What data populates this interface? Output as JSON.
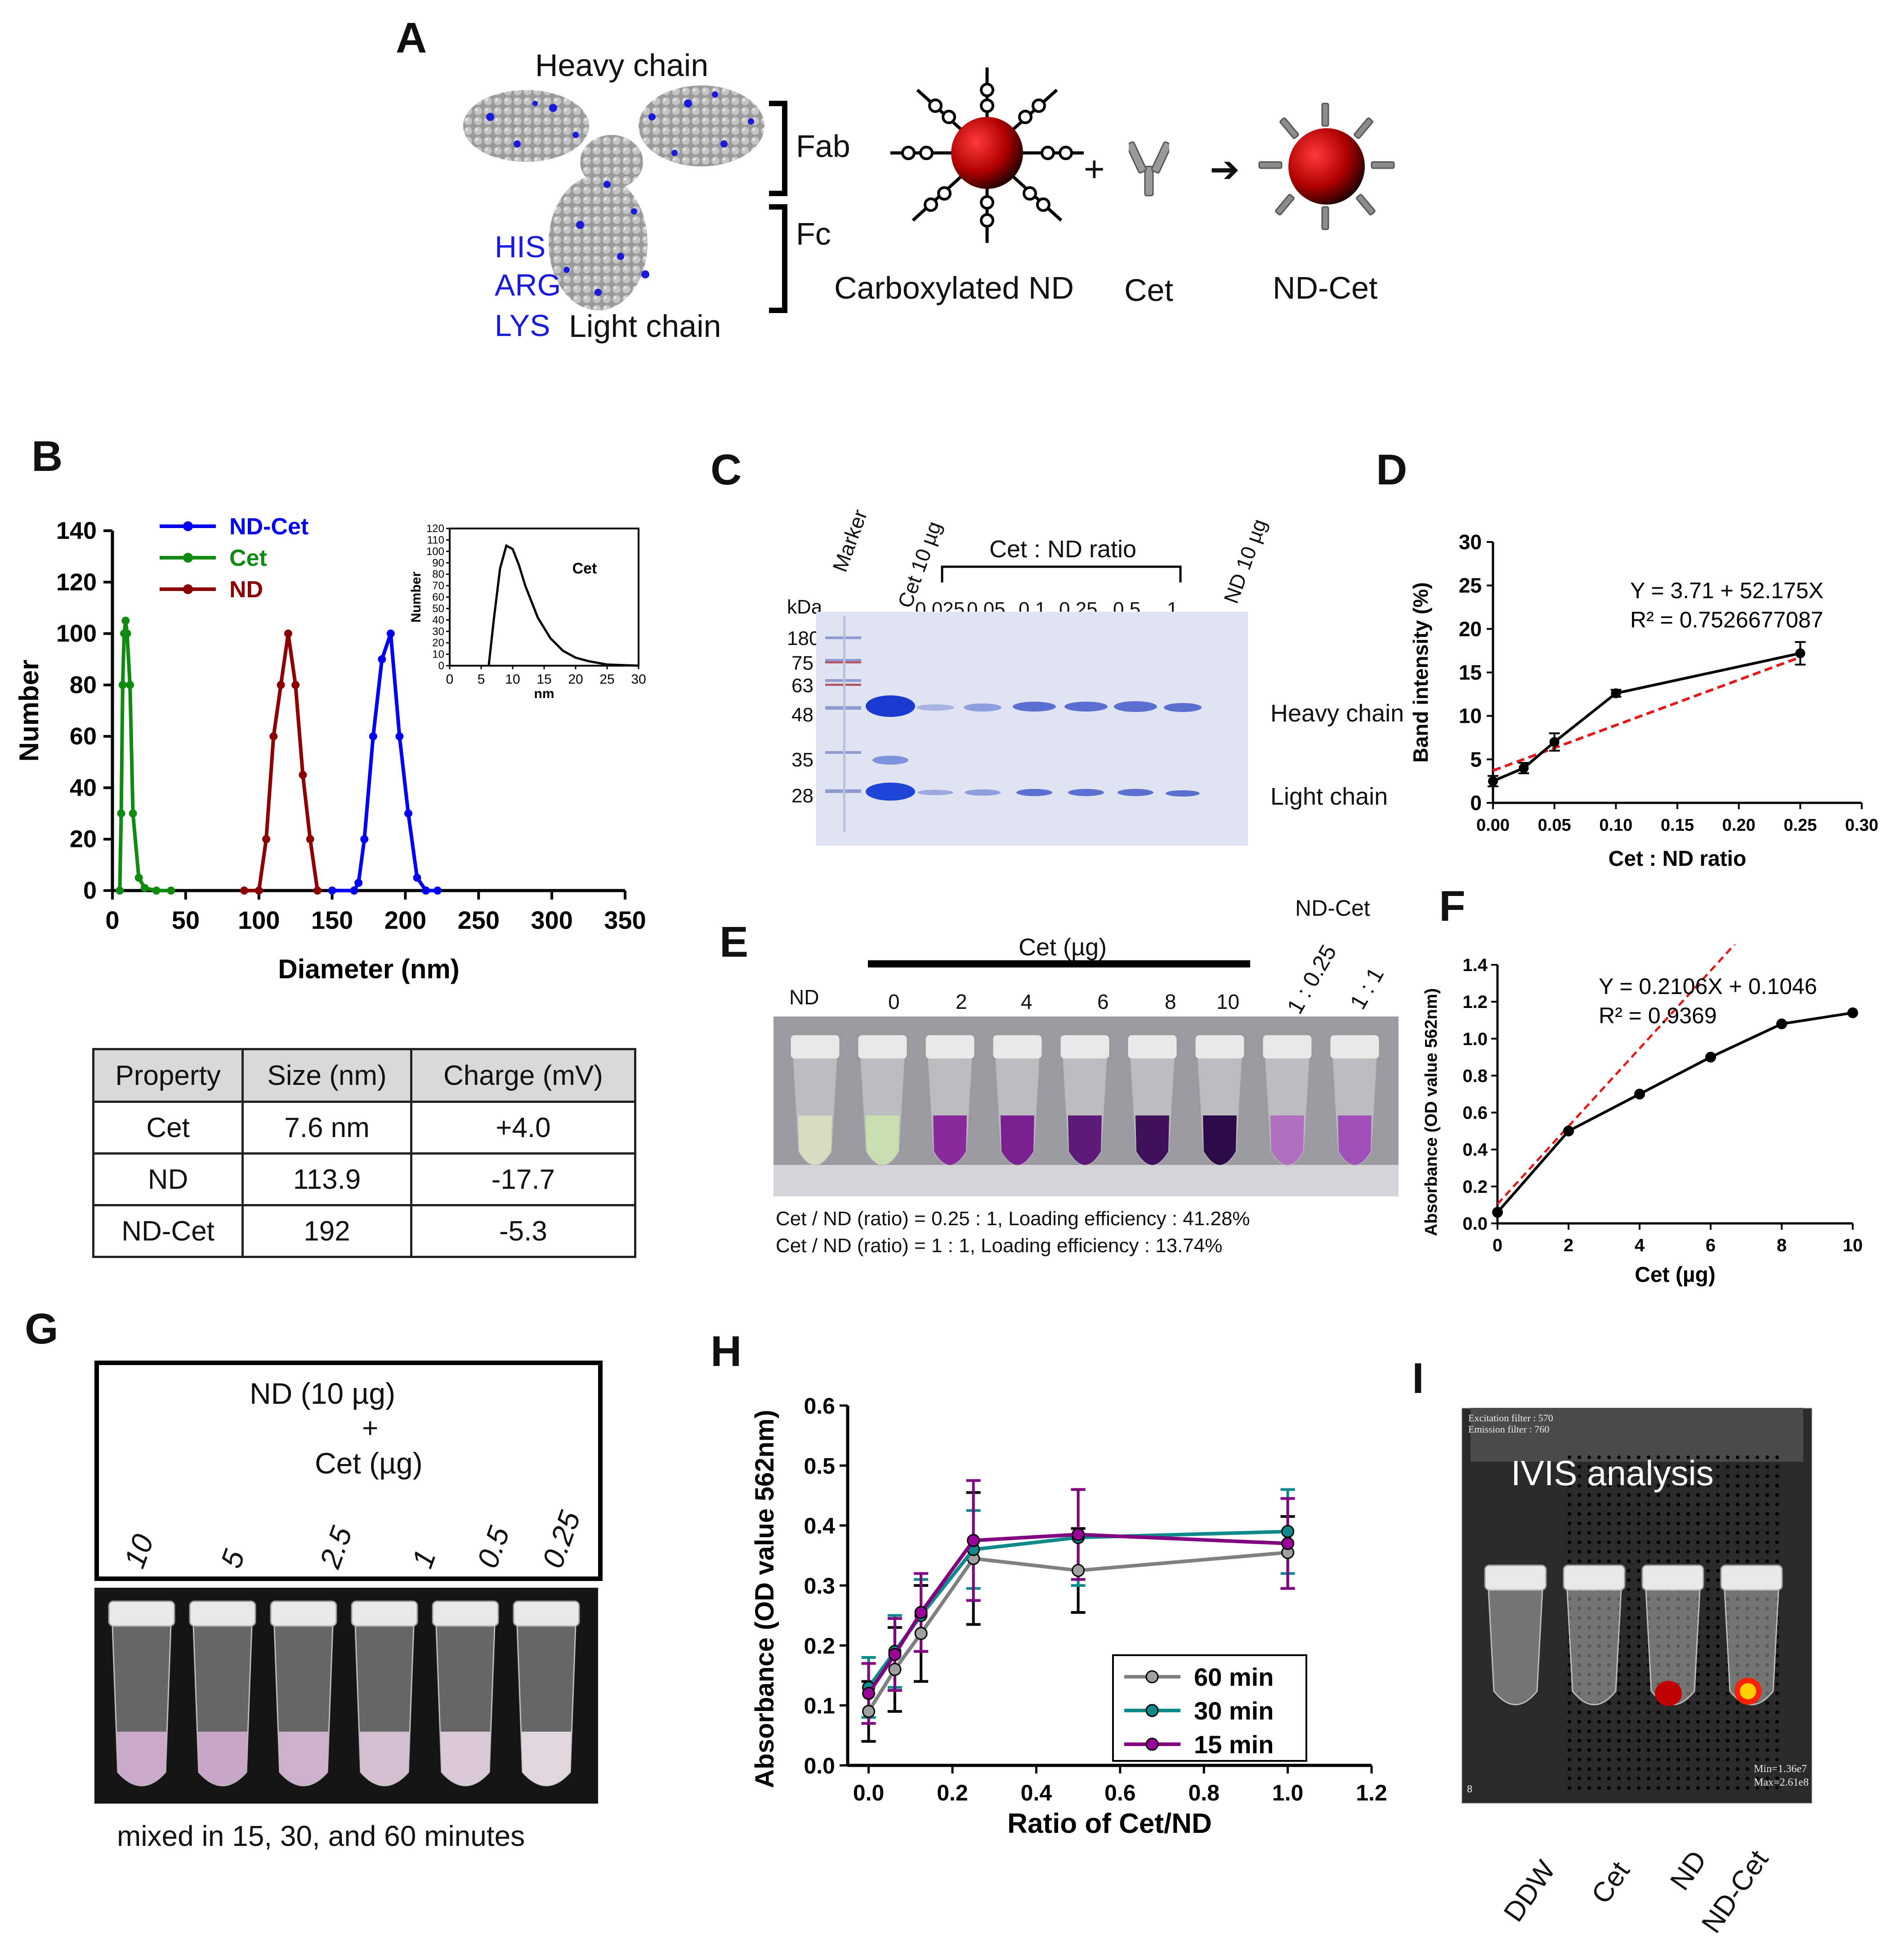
{
  "panels": {
    "A": "A",
    "B": "B",
    "C": "C",
    "D": "D",
    "E": "E",
    "F": "F",
    "G": "G",
    "H": "H",
    "I": "I"
  },
  "schematic": {
    "heavy_chain": "Heavy chain",
    "light_chain": "Light chain",
    "residues": [
      "HIS",
      "ARG",
      "LYS"
    ],
    "fab": "Fab",
    "fc": "Fc",
    "carboxylated_nd": "Carboxylated ND",
    "cet": "Cet",
    "nd_cet": "ND-Cet",
    "plus": "+",
    "arrow": "➔",
    "colors": {
      "residue": "#1a1adb",
      "particle": "#c00000"
    }
  },
  "gel": {
    "kda": "kDa",
    "lane_marker": "Marker",
    "lane_cet": "Cet 10 µg",
    "ratio_title": "Cet : ND ratio",
    "ratios": [
      "0.025",
      "0.05",
      "0.1",
      "0.25",
      "0.5",
      "1"
    ],
    "lane_nd": "ND 10 µg",
    "mw": [
      "180",
      "75",
      "63",
      "48",
      "35",
      "28"
    ],
    "heavy_label": "Heavy chain",
    "light_label": "Light chain"
  },
  "tubes_E": {
    "top_label": "ND-Cet",
    "cet_axis": "Cet (µg)",
    "nd": "ND",
    "amounts": [
      "0",
      "2",
      "4",
      "6",
      "8",
      "10"
    ],
    "ratios": [
      "1 : 0.25",
      "1 : 1"
    ],
    "note1": "Cet / ND (ratio) = 0.25 : 1, Loading efficiency : 41.28%",
    "note2": "Cet / ND (ratio) = 1 : 1, Loading efficiency : 13.74%"
  },
  "table_B": {
    "headers": [
      "Property",
      "Size (nm)",
      "Charge (mV)"
    ],
    "rows": [
      [
        "Cet",
        "7.6 nm",
        "+4.0"
      ],
      [
        "ND",
        "113.9",
        "-17.7"
      ],
      [
        "ND-Cet",
        "192",
        "-5.3"
      ]
    ]
  },
  "panel_G": {
    "line1": "ND (10 µg)",
    "line2": "+",
    "line3": "Cet (µg)",
    "amounts": [
      "10",
      "5",
      "2.5",
      "1",
      "0.5",
      "0.25"
    ],
    "caption": "mixed in 15, 30, and 60 minutes"
  },
  "panel_I": {
    "title": "IVIS analysis",
    "filter1": "Excitation filter : 570",
    "filter2": "Emission filter : 760",
    "min": "Min=1.36e7",
    "max": "Max=2.61e8",
    "corner": "8",
    "labels": [
      "DDW",
      "Cet",
      "ND",
      "ND-Cet"
    ]
  },
  "chart_data": [
    {
      "id": "B",
      "type": "line",
      "xlabel": "Diameter (nm)",
      "ylabel": "Number",
      "xlim": [
        0,
        350
      ],
      "ylim": [
        0,
        140
      ],
      "xticks": [
        0,
        50,
        100,
        150,
        200,
        250,
        300,
        350
      ],
      "yticks": [
        0,
        20,
        40,
        60,
        80,
        100,
        120,
        140
      ],
      "legend": "top-left",
      "series": [
        {
          "name": "ND-Cet",
          "color": "#0000ee",
          "x": [
            150,
            165,
            168,
            172,
            178,
            184,
            190,
            196,
            202,
            208,
            214,
            222
          ],
          "y": [
            0,
            0,
            3,
            20,
            60,
            90,
            100,
            60,
            30,
            5,
            0,
            0
          ]
        },
        {
          "name": "Cet",
          "color": "#108a10",
          "x": [
            5,
            6,
            7,
            8,
            9,
            10,
            12,
            14,
            18,
            22,
            30,
            40
          ],
          "y": [
            0,
            30,
            80,
            100,
            105,
            100,
            80,
            30,
            5,
            1,
            0,
            0
          ]
        },
        {
          "name": "ND",
          "color": "#8b0000",
          "x": [
            90,
            100,
            105,
            110,
            115,
            120,
            125,
            130,
            135,
            140
          ],
          "y": [
            0,
            0,
            20,
            60,
            80,
            100,
            80,
            45,
            20,
            0
          ]
        }
      ],
      "inset": {
        "label": "Cet",
        "xlabel": "nm",
        "ylabel": "Number",
        "xlim": [
          0,
          30
        ],
        "ylim": [
          0,
          120
        ],
        "xticks": [
          0,
          5,
          10,
          15,
          20,
          25,
          30
        ],
        "yticks": [
          0,
          10,
          20,
          30,
          40,
          50,
          60,
          70,
          80,
          90,
          100,
          110,
          120
        ],
        "x": [
          6.2,
          7,
          8,
          9,
          10,
          11,
          12,
          14,
          16,
          18,
          20,
          22,
          25,
          30
        ],
        "y": [
          0,
          40,
          85,
          105,
          102,
          88,
          70,
          42,
          24,
          13,
          7,
          4,
          1,
          0
        ]
      }
    },
    {
      "id": "D",
      "type": "line",
      "xlabel": "Cet : ND ratio",
      "ylabel": "Band intensity (%)",
      "xlim": [
        0,
        0.3
      ],
      "ylim": [
        0,
        30
      ],
      "xticks": [
        "0.00",
        "0.05",
        "0.10",
        "0.15",
        "0.20",
        "0.25",
        "0.30"
      ],
      "yticks": [
        0,
        5,
        10,
        15,
        20,
        25,
        30
      ],
      "equation": "Y = 3.71 + 52.175X",
      "r2": "R² = 0.7526677087",
      "x": [
        0,
        0.025,
        0.05,
        0.1,
        0.25
      ],
      "y": [
        2.5,
        4.0,
        7.0,
        12.6,
        17.2
      ],
      "err": [
        0.6,
        0.6,
        1.0,
        0.4,
        1.3
      ],
      "fit": {
        "intercept": 3.71,
        "slope": 52.175,
        "x": [
          0,
          0.25
        ],
        "color": "#e31a1c"
      }
    },
    {
      "id": "F",
      "type": "line",
      "xlabel": "Cet (µg)",
      "ylabel": "Absorbance (OD value 562nm)",
      "xlim": [
        0,
        10
      ],
      "ylim": [
        0,
        1.4
      ],
      "xticks": [
        0,
        2,
        4,
        6,
        8,
        10
      ],
      "yticks": [
        "0.0",
        "0.2",
        "0.4",
        "0.6",
        "0.8",
        "1.0",
        "1.2",
        "1.4"
      ],
      "equation": "Y = 0.2106X + 0.1046",
      "r2": "R² = 0.9369",
      "x": [
        0,
        2,
        4,
        6,
        8,
        10
      ],
      "y": [
        0.06,
        0.5,
        0.7,
        0.9,
        1.08,
        1.14
      ],
      "fit": {
        "intercept": 0.1046,
        "slope": 0.2106,
        "x": [
          0,
          10
        ],
        "color": "#e31a1c"
      }
    },
    {
      "id": "H",
      "type": "line",
      "xlabel": "Ratio of Cet/ND",
      "ylabel": "Absorbance (OD value 562nm)",
      "xlim": [
        -0.05,
        1.2
      ],
      "ylim": [
        0,
        0.6
      ],
      "xticks": [
        "0.0",
        "0.2",
        "0.4",
        "0.6",
        "0.8",
        "1.0",
        "1.2"
      ],
      "yticks": [
        "0.0",
        "0.1",
        "0.2",
        "0.3",
        "0.4",
        "0.5",
        "0.6"
      ],
      "legend": "bottom-right",
      "x": [
        0,
        0.0625,
        0.125,
        0.25,
        0.5,
        1.0
      ],
      "series": [
        {
          "name": "60 min",
          "color": "#808080",
          "marker": "#a0a0a0",
          "y": [
            0.09,
            0.16,
            0.22,
            0.345,
            0.325,
            0.355
          ],
          "err": [
            0.05,
            0.07,
            0.08,
            0.11,
            0.07,
            0.06
          ],
          "err_color": "#000000"
        },
        {
          "name": "30 min",
          "color": "#0f8a8a",
          "marker": "#0f8a8a",
          "y": [
            0.13,
            0.19,
            0.25,
            0.36,
            0.38,
            0.39
          ],
          "err": [
            0.05,
            0.06,
            0.06,
            0.065,
            0.08,
            0.07
          ],
          "err_color": "#0f8a8a"
        },
        {
          "name": "15 min",
          "color": "#800080",
          "marker": "#9a009a",
          "y": [
            0.12,
            0.185,
            0.255,
            0.375,
            0.385,
            0.37
          ],
          "err": [
            0.05,
            0.06,
            0.065,
            0.1,
            0.075,
            0.075
          ],
          "err_color": "#800080"
        }
      ]
    }
  ]
}
